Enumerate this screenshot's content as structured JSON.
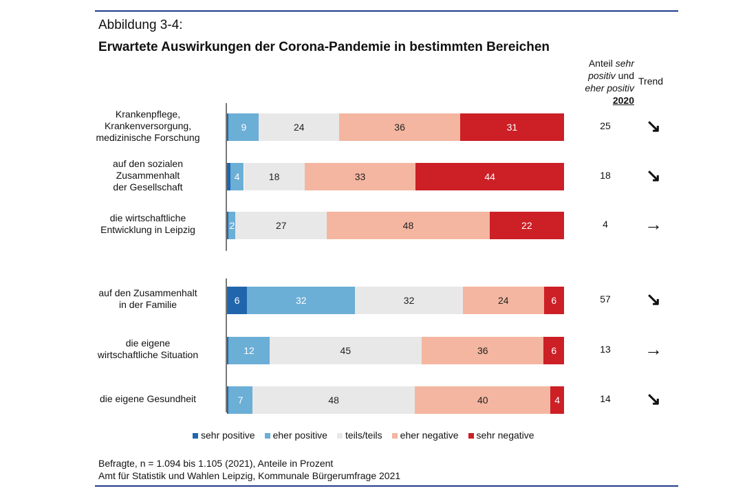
{
  "figure_label": "Abbildung 3-4:",
  "chart_data": {
    "type": "bar",
    "orientation": "horizontal-stacked-100",
    "title": "Erwartete Auswirkungen der Corona-Pandemie in bestimmten Bereichen",
    "categories": [
      "Krankenpflege, Krankenversorgung, medizinische Forschung",
      "auf den sozialen Zusammenhalt der Gesellschaft",
      "die wirtschaftliche Entwicklung in Leipzig",
      "auf den Zusammenhalt in der Familie",
      "die eigene wirtschaftliche Situation",
      "die eigene Gesundheit"
    ],
    "category_lines": [
      [
        "Krankenpflege,",
        "Krankenversorgung,",
        "medizinische Forschung"
      ],
      [
        "auf den sozialen",
        "Zusammenhalt",
        "der Gesellschaft"
      ],
      [
        "die wirtschaftliche",
        "Entwicklung in Leipzig"
      ],
      [
        "auf den Zusammenhalt",
        "in der Familie"
      ],
      [
        "die eigene",
        "wirtschaftliche Situation"
      ],
      [
        "die eigene Gesundheit"
      ]
    ],
    "series": [
      {
        "name": "sehr positive",
        "color": "#2166ac",
        "values": [
          0.5,
          1,
          0.5,
          6,
          0.5,
          0.5
        ],
        "labels": [
          "",
          "",
          "",
          "6",
          "",
          ""
        ]
      },
      {
        "name": "eher positive",
        "color": "#6baed6",
        "values": [
          9,
          4,
          2,
          32,
          12,
          7
        ],
        "labels": [
          "9",
          "4",
          "2",
          "32",
          "12",
          "7"
        ]
      },
      {
        "name": "teils/teils",
        "color": "#e8e8e8",
        "values": [
          24,
          18,
          27,
          32,
          45,
          48
        ],
        "labels": [
          "24",
          "18",
          "27",
          "32",
          "45",
          "48"
        ]
      },
      {
        "name": "eher negative",
        "color": "#f4b6a0",
        "values": [
          36,
          33,
          48,
          24,
          36,
          40
        ],
        "labels": [
          "36",
          "33",
          "48",
          "24",
          "36",
          "40"
        ]
      },
      {
        "name": "sehr negative",
        "color": "#cc1f26",
        "values": [
          31,
          44,
          22,
          6,
          6,
          4
        ],
        "labels": [
          "31",
          "44",
          "22",
          "6",
          "6",
          "4"
        ]
      }
    ],
    "share_header": {
      "a": "Anteil ",
      "b": "sehr",
      "c": "positiv",
      "d": " und",
      "e": "eher positiv",
      "f": "2020"
    },
    "share_values": [
      "25",
      "18",
      "4",
      "57",
      "13",
      "14"
    ],
    "trend_header": "Trend",
    "trends": [
      "↘",
      "↘",
      "→",
      "↘",
      "→",
      "↘"
    ],
    "legend": "bottom"
  },
  "notes": [
    "Befragte, n = 1.094 bis 1.105 (2021), Anteile in Prozent",
    "Amt für Statistik und Wahlen Leipzig, Kommunale Bürgerumfrage 2021"
  ]
}
